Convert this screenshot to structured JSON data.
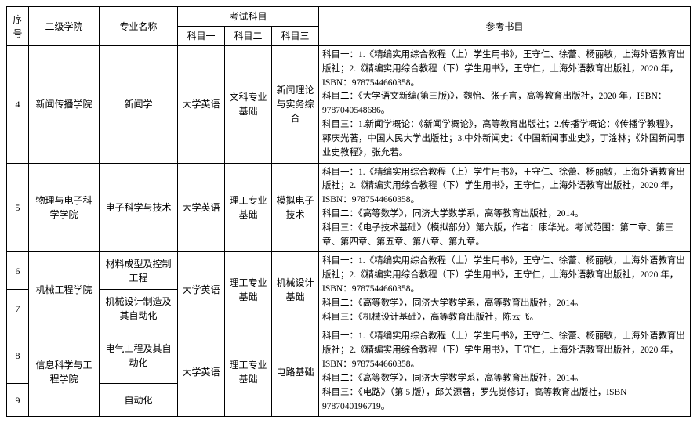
{
  "headers": {
    "seq": "序号",
    "college": "二级学院",
    "major": "专业名称",
    "exam_group": "考试科目",
    "subj1": "科目一",
    "subj2": "科目二",
    "subj3": "科目三",
    "ref": "参考书目"
  },
  "rows": [
    {
      "seq": "4",
      "college": "新闻传播学院",
      "major": "新闻学",
      "subj1": "大学英语",
      "subj2": "文科专业基础",
      "subj3": "新闻理论与实务综合",
      "ref": "科目一：1.《精编实用综合教程（上）学生用书》，王守仁、徐蕾、杨丽敏，上海外语教育出版社；2.《精编实用综合教程（下）学生用书》，王守仁，上海外语教育出版社，2020 年，ISBN：9787544660358。\n科目二：《大学语文新编(第三版)》，魏怡、张子言，高等教育出版社，2020 年，ISBN：9787040548686。\n科目三：1.新闻学概论：《新闻学概论》，高等教育出版社；2.传播学概论：《传播学教程》，郭庆光著，中国人民大学出版社；3.中外新闻史：《中国新闻事业史》，丁淦林；《外国新闻事业史教程》，张允若。"
    },
    {
      "seq": "5",
      "college": "物理与电子科学学院",
      "major": "电子科学与技术",
      "subj1": "大学英语",
      "subj2": "理工专业基础",
      "subj3": "模拟电子技术",
      "ref": "科目一：1.《精编实用综合教程（上）学生用书》，王守仁、徐蕾、杨丽敏，上海外语教育出版社；2.《精编实用综合教程（下）学生用书》，王守仁，上海外语教育出版社，2020 年，ISBN：9787544660358。\n科目二：《高等数学》，同济大学数学系，高等教育出版社，2014。\n科目三：《电子技术基础》（模拟部分）第六版，作者：康华光。考试范围：第二章、第三章、第四章、第五章、第八章、第九章。"
    },
    {
      "seq": "6",
      "college": "机械工程学院",
      "major": "材料成型及控制工程",
      "subj1": "大学英语",
      "subj2": "理工专业基础",
      "subj3": "机械设计基础",
      "ref": "科目一：1.《精编实用综合教程（上）学生用书》，王守仁、徐蕾、杨丽敏，上海外语教育出版社；2.《精编实用综合教程（下）学生用书》，王守仁，上海外语教育出版社，2020 年，ISBN：9787544660358。\n科目二：《高等数学》，同济大学数学系，高等教育出版社，2014。\n科目三：《机械设计基础》，高等教育出版社，陈云飞。"
    },
    {
      "seq": "7",
      "major": "机械设计制造及其自动化"
    },
    {
      "seq": "8",
      "college": "信息科学与工程学院",
      "major": "电气工程及其自动化",
      "subj1": "大学英语",
      "subj2": "理工专业基础",
      "subj3": "电路基础",
      "ref": "科目一：1.《精编实用综合教程（上）学生用书》，王守仁、徐蕾、杨丽敏，上海外语教育出版社；2.《精编实用综合教程（下）学生用书》，王守仁，上海外语教育出版社，2020 年，ISBN：9787544660358。\n科目二：《高等数学》，同济大学数学系，高等教育出版社，2014。\n科目三：《电路》（第 5 版），邱关源著，罗先觉修订，高等教育出版社，ISBN 9787040196719。"
    },
    {
      "seq": "9",
      "major": "自动化"
    }
  ]
}
